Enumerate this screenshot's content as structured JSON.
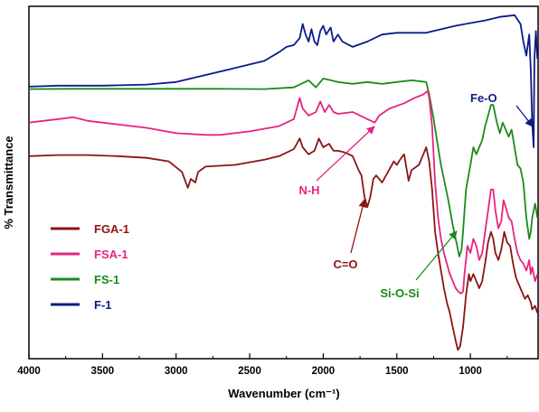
{
  "chart_data": {
    "type": "line",
    "title": "",
    "xlabel": "Wavenumber (cm⁻¹)",
    "ylabel": "% Transmittance",
    "xlim": [
      4000,
      540
    ],
    "x_reversed": true,
    "ylim": [
      0,
      100
    ],
    "x_ticks": [
      4000,
      3500,
      3000,
      2500,
      2000,
      1500,
      1000
    ],
    "y_tick_labels_shown": false,
    "grid": false,
    "legend_position": "left",
    "series": [
      {
        "name": "F-1",
        "color": "#0b1a8a",
        "points": [
          [
            4000,
            77.2
          ],
          [
            3800,
            77.5
          ],
          [
            3500,
            77.5
          ],
          [
            3200,
            77.8
          ],
          [
            3000,
            78.5
          ],
          [
            2800,
            80.5
          ],
          [
            2600,
            82.5
          ],
          [
            2400,
            84.5
          ],
          [
            2300,
            87
          ],
          [
            2250,
            88.5
          ],
          [
            2200,
            89
          ],
          [
            2160,
            91
          ],
          [
            2140,
            95
          ],
          [
            2120,
            92
          ],
          [
            2100,
            90
          ],
          [
            2080,
            93.5
          ],
          [
            2060,
            90
          ],
          [
            2040,
            89
          ],
          [
            2020,
            93
          ],
          [
            2000,
            94.5
          ],
          [
            1980,
            92
          ],
          [
            1950,
            94
          ],
          [
            1930,
            90
          ],
          [
            1900,
            92
          ],
          [
            1870,
            90
          ],
          [
            1800,
            88.5
          ],
          [
            1700,
            90
          ],
          [
            1600,
            92
          ],
          [
            1500,
            92.5
          ],
          [
            1300,
            92.5
          ],
          [
            1100,
            94.5
          ],
          [
            900,
            96
          ],
          [
            800,
            97
          ],
          [
            700,
            97.5
          ],
          [
            660,
            95
          ],
          [
            640,
            90
          ],
          [
            620,
            86
          ],
          [
            600,
            92
          ],
          [
            590,
            82
          ],
          [
            580,
            67
          ],
          [
            570,
            60
          ],
          [
            565,
            85
          ],
          [
            555,
            93
          ],
          [
            545,
            85
          ]
        ]
      },
      {
        "name": "FS-1",
        "color": "#1c8a1c",
        "points": [
          [
            4000,
            76.5
          ],
          [
            3700,
            76.6
          ],
          [
            3400,
            76.6
          ],
          [
            3000,
            76.6
          ],
          [
            2700,
            76.6
          ],
          [
            2400,
            76.5
          ],
          [
            2200,
            77
          ],
          [
            2150,
            78
          ],
          [
            2100,
            79
          ],
          [
            2050,
            77
          ],
          [
            2000,
            79.5
          ],
          [
            1900,
            78.5
          ],
          [
            1800,
            78
          ],
          [
            1700,
            78.5
          ],
          [
            1600,
            78
          ],
          [
            1500,
            78.5
          ],
          [
            1400,
            79
          ],
          [
            1300,
            78.5
          ],
          [
            1280,
            75
          ],
          [
            1250,
            68
          ],
          [
            1220,
            60
          ],
          [
            1200,
            55
          ],
          [
            1150,
            45
          ],
          [
            1120,
            38
          ],
          [
            1090,
            32
          ],
          [
            1075,
            29
          ],
          [
            1060,
            31
          ],
          [
            1050,
            36
          ],
          [
            1030,
            48
          ],
          [
            1000,
            55
          ],
          [
            980,
            60
          ],
          [
            960,
            58
          ],
          [
            940,
            60
          ],
          [
            920,
            62
          ],
          [
            900,
            66
          ],
          [
            880,
            69
          ],
          [
            860,
            72
          ],
          [
            845,
            72
          ],
          [
            820,
            67
          ],
          [
            800,
            64
          ],
          [
            780,
            67
          ],
          [
            760,
            65
          ],
          [
            740,
            63
          ],
          [
            720,
            65
          ],
          [
            700,
            60
          ],
          [
            680,
            55
          ],
          [
            660,
            54
          ],
          [
            640,
            50
          ],
          [
            620,
            40
          ],
          [
            600,
            34
          ],
          [
            590,
            36
          ],
          [
            580,
            40
          ],
          [
            560,
            44
          ],
          [
            545,
            40
          ]
        ]
      },
      {
        "name": "FSA-1",
        "color": "#e8237f",
        "points": [
          [
            4000,
            67
          ],
          [
            3800,
            68
          ],
          [
            3700,
            68.5
          ],
          [
            3600,
            67.5
          ],
          [
            3400,
            66.5
          ],
          [
            3200,
            65.5
          ],
          [
            3000,
            64
          ],
          [
            2800,
            63.5
          ],
          [
            2700,
            63.5
          ],
          [
            2500,
            64.5
          ],
          [
            2300,
            66
          ],
          [
            2200,
            68
          ],
          [
            2160,
            74
          ],
          [
            2140,
            71
          ],
          [
            2100,
            69
          ],
          [
            2050,
            70
          ],
          [
            2020,
            73
          ],
          [
            1990,
            70
          ],
          [
            1960,
            72
          ],
          [
            1930,
            70
          ],
          [
            1900,
            69.5
          ],
          [
            1800,
            70
          ],
          [
            1700,
            68
          ],
          [
            1650,
            67
          ],
          [
            1620,
            69
          ],
          [
            1550,
            71
          ],
          [
            1450,
            72.5
          ],
          [
            1380,
            74
          ],
          [
            1320,
            75
          ],
          [
            1290,
            76
          ],
          [
            1280,
            74
          ],
          [
            1260,
            66
          ],
          [
            1240,
            50
          ],
          [
            1220,
            40
          ],
          [
            1200,
            34
          ],
          [
            1180,
            30
          ],
          [
            1160,
            27
          ],
          [
            1140,
            24
          ],
          [
            1120,
            22
          ],
          [
            1100,
            20
          ],
          [
            1080,
            19
          ],
          [
            1065,
            18.5
          ],
          [
            1050,
            19
          ],
          [
            1040,
            24
          ],
          [
            1020,
            32
          ],
          [
            1000,
            30
          ],
          [
            980,
            34
          ],
          [
            960,
            32
          ],
          [
            940,
            28
          ],
          [
            920,
            30
          ],
          [
            900,
            36
          ],
          [
            880,
            42
          ],
          [
            860,
            48
          ],
          [
            845,
            48
          ],
          [
            830,
            42
          ],
          [
            810,
            37
          ],
          [
            790,
            39
          ],
          [
            775,
            45
          ],
          [
            760,
            43
          ],
          [
            740,
            40
          ],
          [
            720,
            39
          ],
          [
            700,
            34
          ],
          [
            680,
            30
          ],
          [
            660,
            28
          ],
          [
            640,
            27
          ],
          [
            620,
            25
          ],
          [
            600,
            28
          ],
          [
            590,
            24
          ],
          [
            580,
            26
          ],
          [
            560,
            22
          ],
          [
            545,
            24
          ]
        ]
      },
      {
        "name": "FGA-1",
        "color": "#8b1414",
        "points": [
          [
            4000,
            57.5
          ],
          [
            3800,
            57.8
          ],
          [
            3600,
            57.8
          ],
          [
            3400,
            57.5
          ],
          [
            3200,
            57
          ],
          [
            3050,
            56
          ],
          [
            2960,
            53
          ],
          [
            2920,
            48.5
          ],
          [
            2900,
            51
          ],
          [
            2870,
            50
          ],
          [
            2850,
            53
          ],
          [
            2800,
            54.5
          ],
          [
            2600,
            55
          ],
          [
            2400,
            56.5
          ],
          [
            2300,
            57.5
          ],
          [
            2250,
            58.5
          ],
          [
            2200,
            59.5
          ],
          [
            2160,
            62.5
          ],
          [
            2140,
            60
          ],
          [
            2100,
            58
          ],
          [
            2060,
            59
          ],
          [
            2030,
            62.5
          ],
          [
            2000,
            60
          ],
          [
            1960,
            61
          ],
          [
            1930,
            59
          ],
          [
            1900,
            59
          ],
          [
            1850,
            58.5
          ],
          [
            1800,
            57.5
          ],
          [
            1760,
            53.5
          ],
          [
            1740,
            52
          ],
          [
            1720,
            46
          ],
          [
            1700,
            43
          ],
          [
            1680,
            46
          ],
          [
            1660,
            51
          ],
          [
            1640,
            52
          ],
          [
            1620,
            51
          ],
          [
            1600,
            50
          ],
          [
            1560,
            53
          ],
          [
            1520,
            56
          ],
          [
            1500,
            55
          ],
          [
            1470,
            57
          ],
          [
            1450,
            58
          ],
          [
            1420,
            50.5
          ],
          [
            1400,
            53.5
          ],
          [
            1350,
            55
          ],
          [
            1320,
            58
          ],
          [
            1300,
            60
          ],
          [
            1280,
            56
          ],
          [
            1260,
            48
          ],
          [
            1240,
            36
          ],
          [
            1220,
            30
          ],
          [
            1200,
            25
          ],
          [
            1180,
            20
          ],
          [
            1160,
            16
          ],
          [
            1140,
            13
          ],
          [
            1120,
            9
          ],
          [
            1100,
            5
          ],
          [
            1085,
            2.5
          ],
          [
            1070,
            3.5
          ],
          [
            1050,
            9
          ],
          [
            1030,
            18
          ],
          [
            1010,
            24
          ],
          [
            1000,
            22
          ],
          [
            980,
            24
          ],
          [
            960,
            22
          ],
          [
            940,
            20
          ],
          [
            920,
            22
          ],
          [
            900,
            27
          ],
          [
            880,
            33
          ],
          [
            860,
            36
          ],
          [
            845,
            34
          ],
          [
            830,
            30
          ],
          [
            810,
            28
          ],
          [
            790,
            31
          ],
          [
            770,
            36
          ],
          [
            750,
            33
          ],
          [
            730,
            32
          ],
          [
            710,
            27
          ],
          [
            690,
            23
          ],
          [
            670,
            21
          ],
          [
            650,
            19
          ],
          [
            630,
            17
          ],
          [
            610,
            18
          ],
          [
            590,
            16
          ],
          [
            580,
            14
          ],
          [
            560,
            15
          ],
          [
            545,
            13
          ]
        ]
      }
    ],
    "annotations": [
      {
        "text": "Fe-O",
        "color": "#0b1a8a"
      },
      {
        "text": "N-H",
        "color": "#e8237f"
      },
      {
        "text": "C=O",
        "color": "#8b1414"
      },
      {
        "text": "Si-O-Si",
        "color": "#1c8a1c"
      }
    ]
  }
}
